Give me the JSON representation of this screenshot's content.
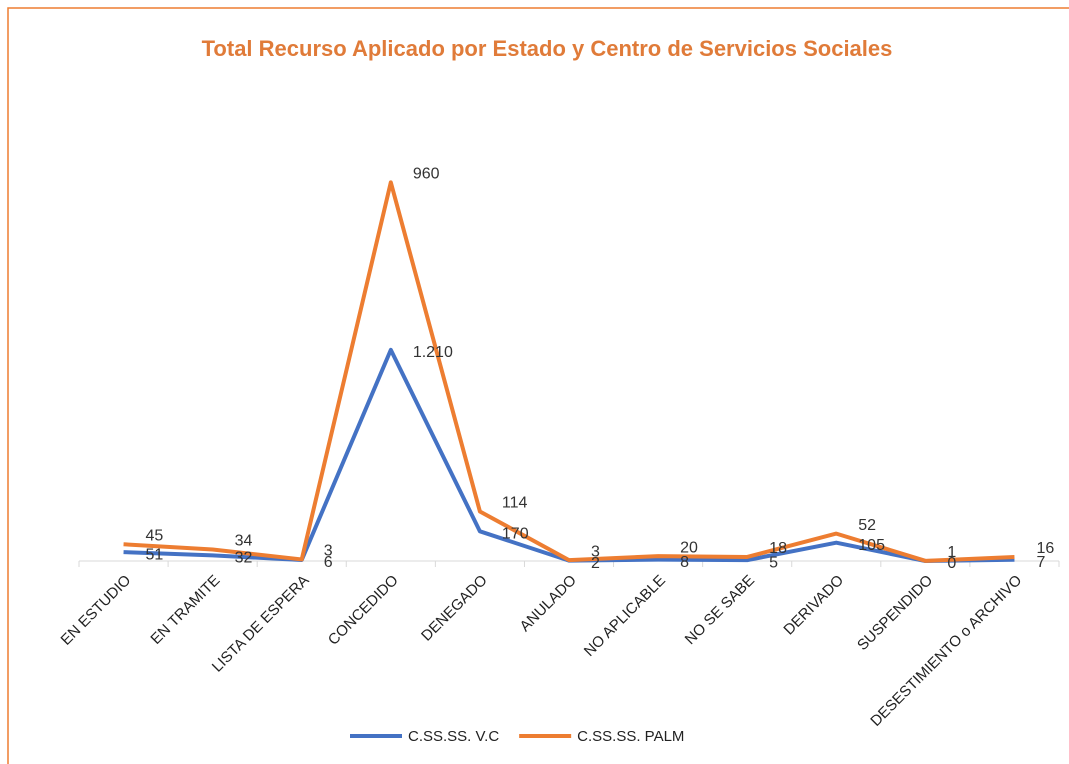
{
  "chart_data": {
    "type": "line",
    "stacked": true,
    "title": "Total Recurso Aplicado por Estado y Centro de Servicios Sociales",
    "categories": [
      "EN ESTUDIO",
      "EN TRAMITE",
      "LISTA DE ESPERA",
      "CONCEDIDO",
      "DENEGADO",
      "ANULADO",
      "NO APLICABLE",
      "NO SE SABE",
      "DERIVADO",
      "SUSPENDIDO",
      "DESESTIMIENTO o ARCHIVO"
    ],
    "series": [
      {
        "name": "C.SS.SS. V.C",
        "color": "#4472C4",
        "values": [
          51,
          32,
          6,
          1210,
          170,
          2,
          8,
          5,
          105,
          0,
          7
        ],
        "value_labels": [
          "51",
          "32",
          "6",
          "1.210",
          "170",
          "2",
          "8",
          "5",
          "105",
          "0",
          "7"
        ]
      },
      {
        "name": "C.SS.SS. PALM",
        "color": "#ED7D31",
        "values": [
          45,
          34,
          3,
          960,
          114,
          3,
          20,
          18,
          52,
          1,
          16
        ]
      }
    ],
    "ylim": [
      0,
      2470
    ],
    "legend": "bottom"
  }
}
